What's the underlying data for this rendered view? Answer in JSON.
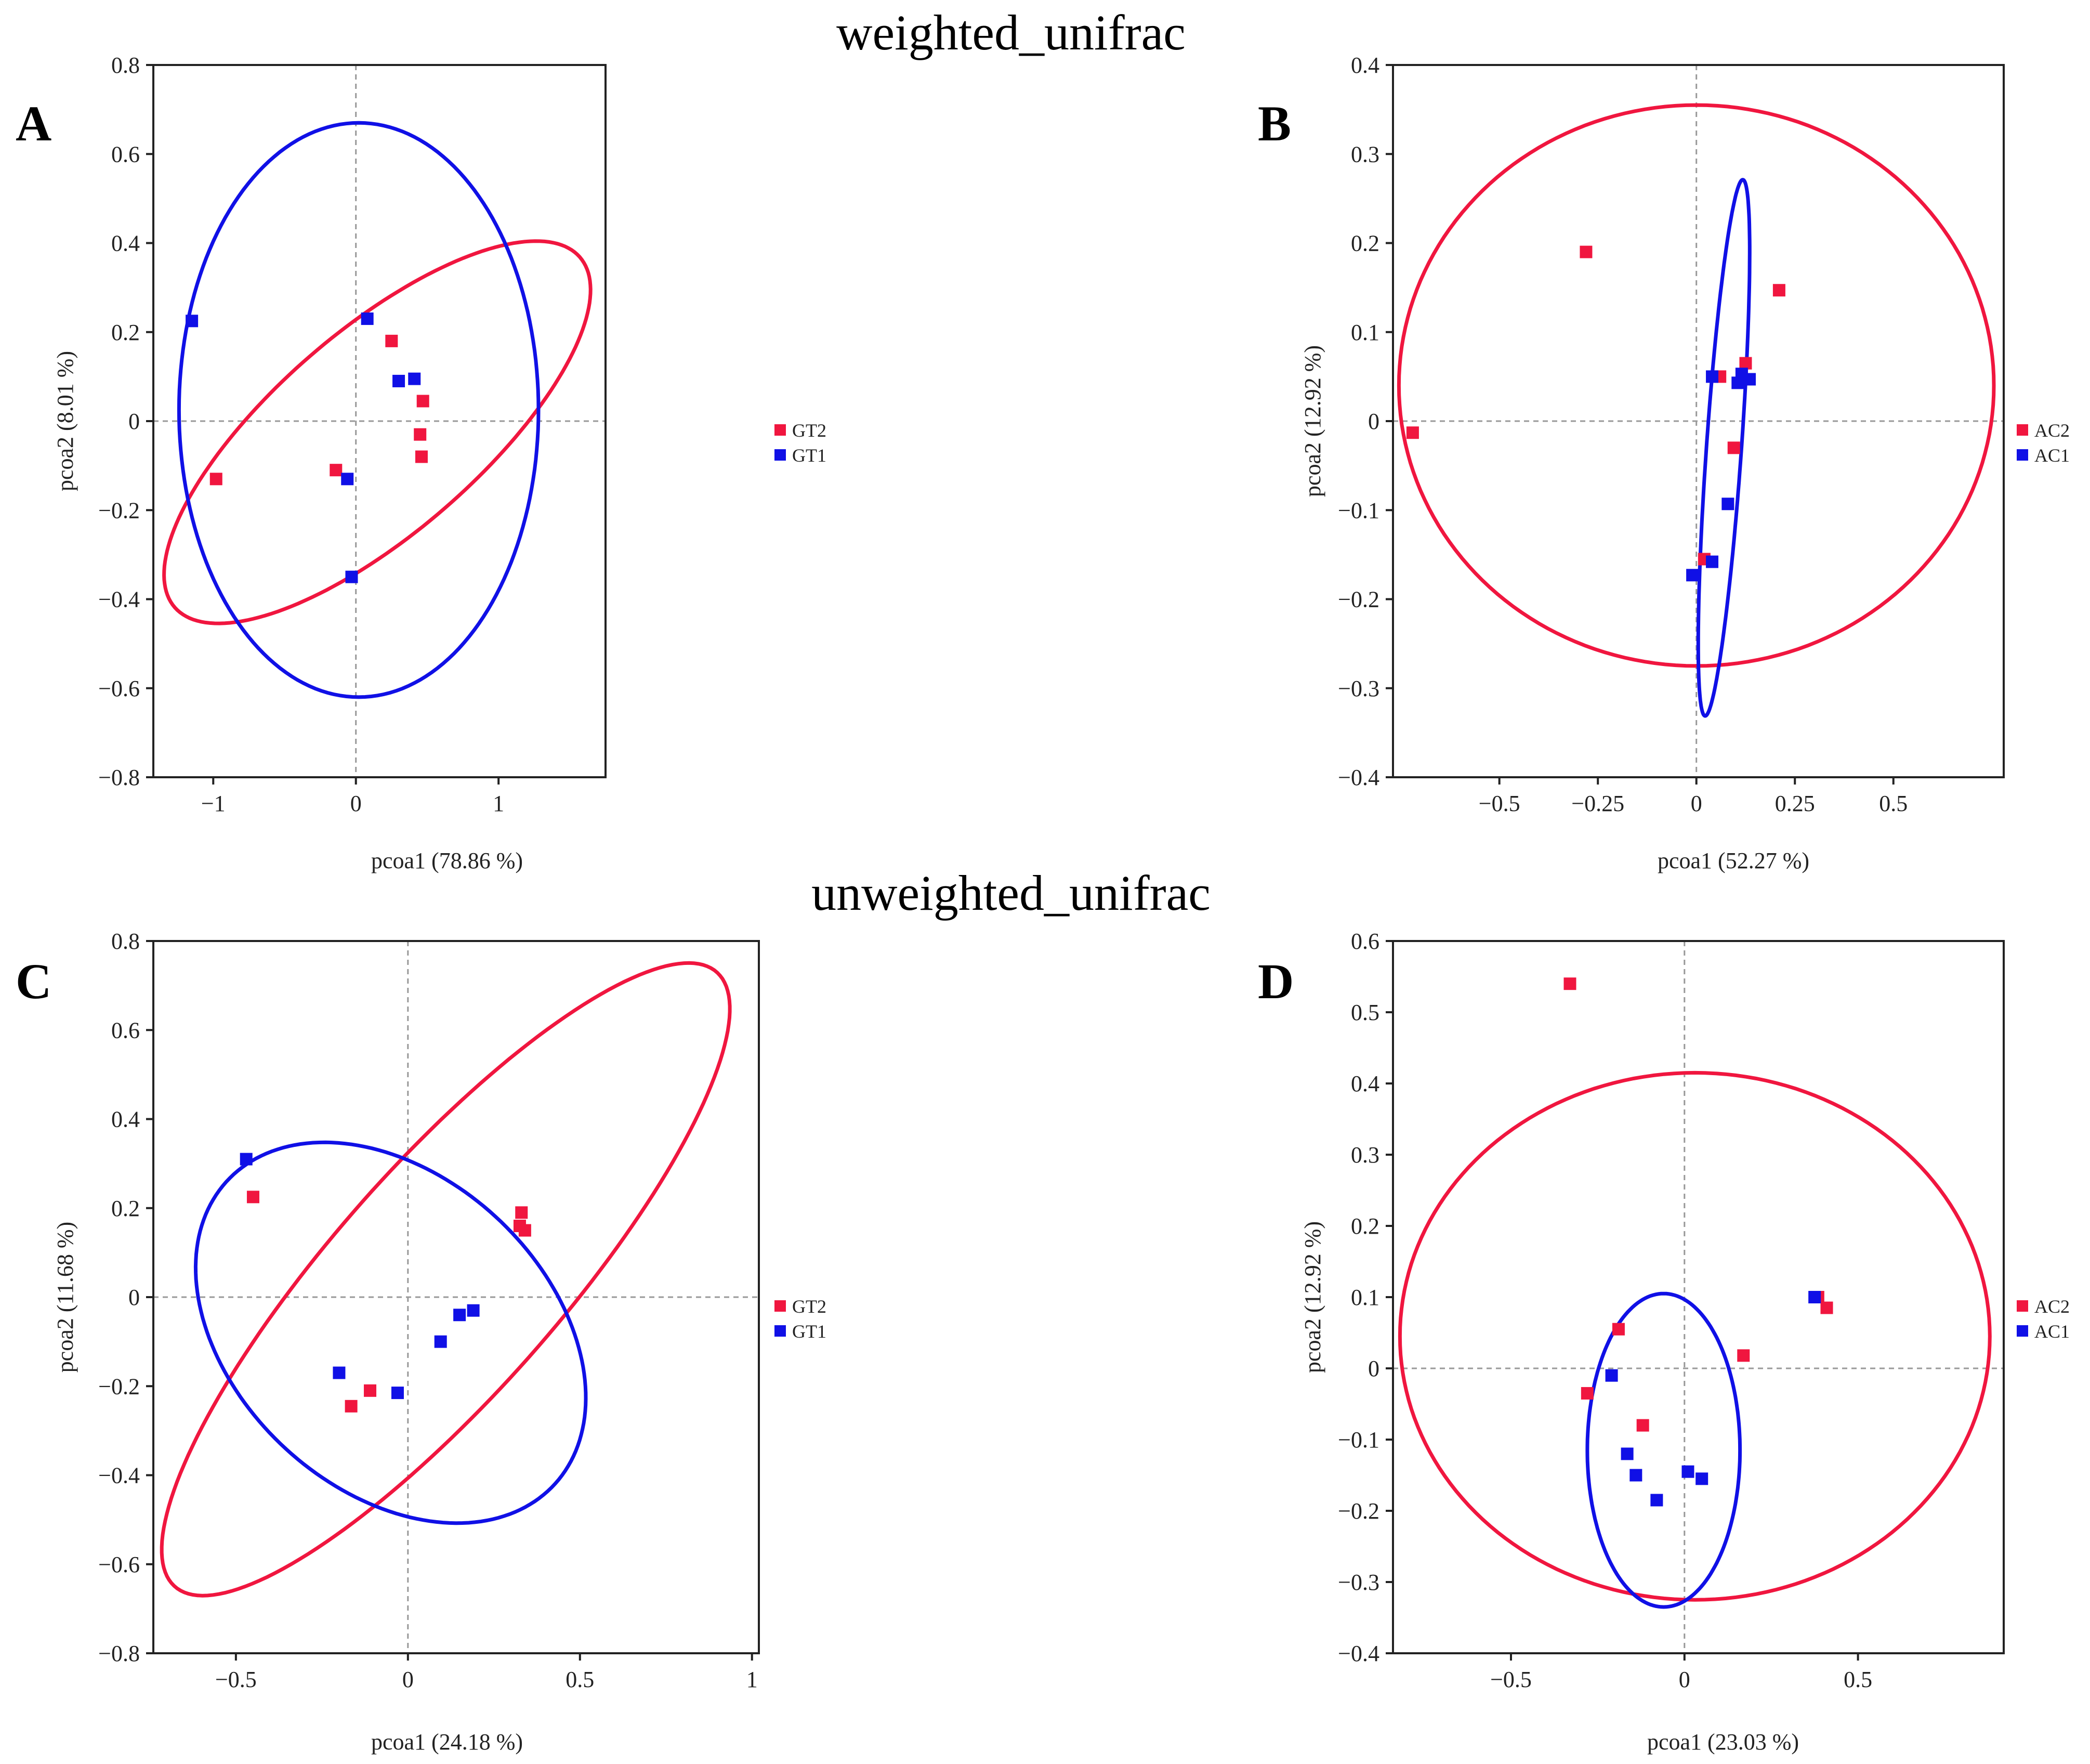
{
  "figure": {
    "section_titles": [
      "weighted_unifrac",
      "unweighted_unifrac"
    ]
  },
  "colors": {
    "red": "#f0163f",
    "blue": "#1010e6",
    "frame": "#222222",
    "zero_line": "#999999"
  },
  "chart_data": [
    {
      "panel": "A",
      "type": "scatter",
      "xlabel": "pcoa1 (78.86 %)",
      "ylabel": "pcoa2 (8.01 %)",
      "xlim": [
        -1.42,
        1.75
      ],
      "ylim": [
        -0.8,
        0.8
      ],
      "xticks": [
        -1,
        0,
        1
      ],
      "xtick_labels": [
        "−1",
        "0",
        "1"
      ],
      "yticks": [
        -0.8,
        -0.6,
        -0.4,
        -0.2,
        0,
        0.2,
        0.4,
        0.6,
        0.8
      ],
      "ytick_labels": [
        "−0.8",
        "−0.6",
        "−0.4",
        "−0.2",
        "0",
        "0.2",
        "0.4",
        "0.6",
        "0.8"
      ],
      "legend": [
        "GT2",
        "GT1"
      ],
      "series": [
        {
          "name": "GT2",
          "color": "#f0163f",
          "x": [
            -0.98,
            -0.14,
            0.25,
            0.47,
            0.45,
            0.46
          ],
          "y": [
            -0.13,
            -0.11,
            0.18,
            0.045,
            -0.03,
            -0.08
          ]
        },
        {
          "name": "GT1",
          "color": "#1010e6",
          "x": [
            -1.15,
            0.08,
            0.3,
            0.41,
            -0.06,
            -0.03
          ],
          "y": [
            0.225,
            0.23,
            0.09,
            0.095,
            -0.13,
            -0.35
          ]
        }
      ],
      "ellipses": [
        {
          "group": "GT2",
          "color": "#f0163f",
          "cx": 0.15,
          "cy": -0.025,
          "rx": 1.53,
          "ry": 0.28,
          "angle": 12.5
        },
        {
          "group": "GT1",
          "color": "#1010e6",
          "cx": 0.02,
          "cy": 0.025,
          "rx": 1.26,
          "ry": 0.645,
          "angle": 0
        }
      ]
    },
    {
      "panel": "B",
      "type": "scatter",
      "xlabel": "pcoa1 (52.27 %)",
      "ylabel": "pcoa2 (12.92 %)",
      "xlim": [
        -0.77,
        0.78
      ],
      "ylim": [
        -0.4,
        0.4
      ],
      "xticks": [
        -0.5,
        -0.25,
        0,
        0.25,
        0.5
      ],
      "xtick_labels": [
        "−0.5",
        "−0.25",
        "0",
        "0.25",
        "0.5"
      ],
      "yticks": [
        -0.4,
        -0.3,
        -0.2,
        -0.1,
        0,
        0.1,
        0.2,
        0.3,
        0.4
      ],
      "ytick_labels": [
        "−0.4",
        "−0.3",
        "−0.2",
        "−0.1",
        "0",
        "0.1",
        "0.2",
        "0.3",
        "0.4"
      ],
      "legend": [
        "AC2",
        "AC1"
      ],
      "series": [
        {
          "name": "AC2",
          "color": "#f0163f",
          "x": [
            -0.28,
            0.21,
            0.125,
            0.06,
            0.095,
            0.02,
            -0.72
          ],
          "y": [
            0.19,
            0.147,
            0.065,
            0.05,
            -0.03,
            -0.155,
            -0.013
          ]
        },
        {
          "name": "AC1",
          "color": "#1010e6",
          "x": [
            0.04,
            0.115,
            0.135,
            0.105,
            0.08,
            0.04,
            -0.01
          ],
          "y": [
            0.05,
            0.053,
            0.047,
            0.043,
            -0.093,
            -0.158,
            -0.173
          ]
        }
      ],
      "ellipses": [
        {
          "group": "AC2",
          "color": "#f0163f",
          "cx": 0.0,
          "cy": 0.04,
          "rx": 0.755,
          "ry": 0.315,
          "angle": 0
        },
        {
          "group": "AC1",
          "color": "#1010e6",
          "cx": 0.07,
          "cy": -0.03,
          "rx": 0.305,
          "ry": 0.044,
          "angle": 80.8
        }
      ]
    },
    {
      "panel": "C",
      "type": "scatter",
      "xlabel": "pcoa1 (24.18 %)",
      "ylabel": "pcoa2 (11.68 %)",
      "xlim": [
        -0.74,
        1.02
      ],
      "ylim": [
        -0.8,
        0.8
      ],
      "xticks": [
        -0.5,
        0,
        0.5,
        1
      ],
      "xtick_labels": [
        "−0.5",
        "0",
        "0.5",
        "1"
      ],
      "yticks": [
        -0.8,
        -0.6,
        -0.4,
        -0.2,
        0,
        0.2,
        0.4,
        0.6,
        0.8
      ],
      "ytick_labels": [
        "−0.8",
        "−0.6",
        "−0.4",
        "−0.2",
        "0",
        "0.2",
        "0.4",
        "0.6",
        "0.8"
      ],
      "legend": [
        "GT2",
        "GT1"
      ],
      "series": [
        {
          "name": "GT2",
          "color": "#f0163f",
          "x": [
            -0.45,
            0.33,
            0.325,
            0.34,
            -0.11,
            -0.165
          ],
          "y": [
            0.225,
            0.19,
            0.16,
            0.15,
            -0.21,
            -0.245
          ]
        },
        {
          "name": "GT1",
          "color": "#1010e6",
          "x": [
            -0.47,
            0.19,
            0.15,
            0.095,
            -0.2,
            -0.03
          ],
          "y": [
            0.31,
            -0.03,
            -0.04,
            -0.1,
            -0.17,
            -0.215
          ]
        }
      ],
      "ellipses": [
        {
          "group": "GT2",
          "color": "#f0163f",
          "cx": 0.11,
          "cy": 0.04,
          "rx": 1.05,
          "ry": 0.29,
          "angle": 40
        },
        {
          "group": "GT1",
          "color": "#1010e6",
          "cx": -0.05,
          "cy": -0.08,
          "rx": 0.6,
          "ry": 0.38,
          "angle": -25
        }
      ]
    },
    {
      "panel": "D",
      "type": "scatter",
      "xlabel": "pcoa1 (23.03 %)",
      "ylabel": "pcoa2 (12.92 %)",
      "xlim": [
        -0.84,
        0.92
      ],
      "ylim": [
        -0.4,
        0.6
      ],
      "xticks": [
        -0.5,
        0,
        0.5
      ],
      "xtick_labels": [
        "−0.5",
        "0",
        "0.5"
      ],
      "yticks": [
        -0.4,
        -0.3,
        -0.2,
        -0.1,
        0,
        0.1,
        0.2,
        0.3,
        0.4,
        0.5,
        0.6
      ],
      "ytick_labels": [
        "−0.4",
        "−0.3",
        "−0.2",
        "−0.1",
        "0",
        "0.1",
        "0.2",
        "0.3",
        "0.4",
        "0.5",
        "0.6"
      ],
      "legend": [
        "AC2",
        "AC1"
      ],
      "series": [
        {
          "name": "AC2",
          "color": "#f0163f",
          "x": [
            -0.33,
            -0.19,
            0.17,
            0.385,
            0.41,
            -0.28,
            -0.12
          ],
          "y": [
            0.54,
            0.055,
            0.018,
            0.1,
            0.085,
            -0.035,
            -0.08
          ]
        },
        {
          "name": "AC1",
          "color": "#1010e6",
          "x": [
            -0.21,
            0.375,
            -0.165,
            -0.14,
            -0.08,
            0.01,
            0.05
          ],
          "y": [
            -0.01,
            0.1,
            -0.12,
            -0.15,
            -0.185,
            -0.145,
            -0.155
          ]
        }
      ],
      "ellipses": [
        {
          "group": "AC2",
          "color": "#f0163f",
          "cx": 0.03,
          "cy": 0.045,
          "rx": 0.85,
          "ry": 0.37,
          "angle": 0
        },
        {
          "group": "AC1",
          "color": "#1010e6",
          "cx": -0.06,
          "cy": -0.115,
          "rx": 0.22,
          "ry": 0.22,
          "angle": -30
        }
      ]
    }
  ]
}
